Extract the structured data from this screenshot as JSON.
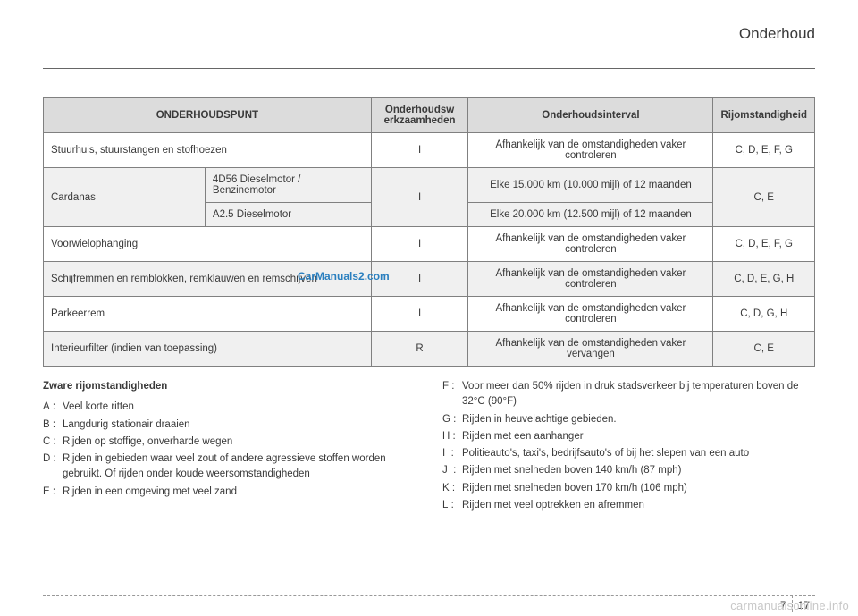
{
  "header": {
    "title": "Onderhoud"
  },
  "table": {
    "headers": {
      "point": "ONDERHOUDSPUNT",
      "werk": "Onderhoudsw erkzaamheden",
      "interval": "Onderhoudsinterval",
      "rij": "Rijomstandigheid"
    },
    "rows": {
      "r1": {
        "point": "Stuurhuis, stuurstangen en stofhoezen",
        "werk": "I",
        "interval": "Afhankelijk van de omstandigheden vaker controleren",
        "rij": "C, D, E, F, G"
      },
      "r2": {
        "point_label": "Cardanas",
        "sub1": "4D56 Dieselmotor / Benzinemotor",
        "sub2": "A2.5 Dieselmotor",
        "werk": "I",
        "int1": "Elke 15.000 km (10.000 mijl) of 12 maanden",
        "int2": "Elke 20.000 km (12.500 mijl) of 12 maanden",
        "rij": "C, E"
      },
      "r3": {
        "point": "Voorwielophanging",
        "werk": "I",
        "interval": "Afhankelijk van de omstandigheden vaker controleren",
        "rij": "C, D, E, F, G"
      },
      "r4": {
        "point": "Schijfremmen en remblokken, remklauwen en remschijven",
        "werk": "I",
        "interval": "Afhankelijk van de omstandigheden vaker controleren",
        "rij": "C, D, E, G, H"
      },
      "r5": {
        "point": "Parkeerrem",
        "werk": "I",
        "interval": "Afhankelijk van de omstandigheden vaker controleren",
        "rij": "C, D, G, H"
      },
      "r6": {
        "point": "Interieurfilter (indien van toepassing)",
        "werk": "R",
        "interval": "Afhankelijk van de omstandigheden vaker vervangen",
        "rij": "C, E"
      }
    }
  },
  "legend": {
    "title": "Zware rijomstandigheden",
    "left": {
      "A": "Veel korte ritten",
      "B": "Langdurig stationair draaien",
      "C": "Rijden op stoffige, onverharde wegen",
      "D": "Rijden in gebieden waar veel zout of andere agressieve stoffen worden gebruikt. Of rijden onder koude weersomstandigheden",
      "E": "Rijden in een omgeving met veel zand"
    },
    "right": {
      "F": "Voor meer dan 50% rijden in druk stadsverkeer bij temperaturen boven de 32°C (90°F)",
      "G": "Rijden in heuvelachtige gebieden.",
      "H": "Rijden met een aanhanger",
      "I": "Politieauto's, taxi's, bedrijfsauto's of bij het slepen van een auto",
      "J": "Rijden met snelheden boven 140 km/h (87 mph)",
      "K": "Rijden met snelheden boven 170 km/h (106 mph)",
      "L": "Rijden met veel optrekken en afremmen"
    }
  },
  "footer": {
    "chapter": "7",
    "page": "17"
  },
  "watermark": "carmanualsonline.info",
  "watermark2": "CarManuals2.com"
}
